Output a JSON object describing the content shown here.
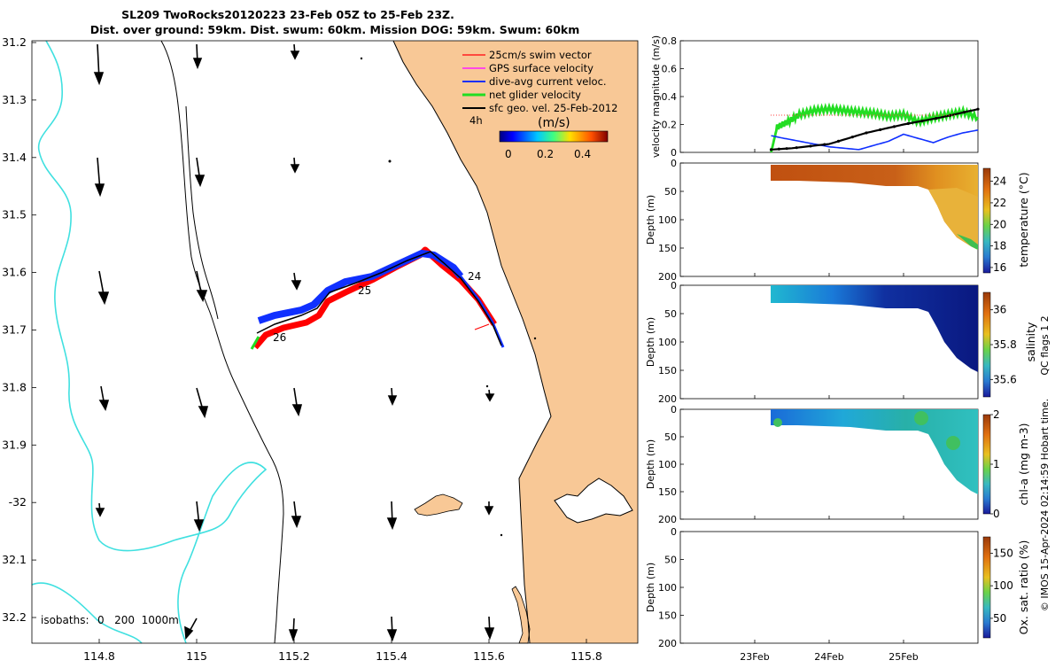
{
  "title": {
    "line1": "SL209 TwoRocks20120223 23-Feb 05Z to 25-Feb 23Z.",
    "line2": "Dist. over ground: 59km. Dist. swum: 60km. Mission DOG: 59km. Swum: 60km"
  },
  "colors": {
    "land": "#f8c896",
    "isobath_shallow": "#40e0e0",
    "track_red": "#ff0000",
    "current_blue": "#1030ff",
    "net_green": "#22dd22",
    "geo_black": "#000000"
  },
  "map": {
    "lat_ticks": [
      "31.2",
      "31.3",
      "31.4",
      "31.5",
      "31.6",
      "31.7",
      "31.8",
      "31.9",
      "-32",
      "32.1",
      "32.2"
    ],
    "lon_ticks": [
      "114.8",
      "115",
      "115.2",
      "115.4",
      "115.6",
      "115.8"
    ],
    "day_labels": [
      "24",
      "25",
      "26"
    ],
    "isobaths": {
      "label": "isobaths:",
      "values": "0   200  1000m"
    },
    "legend": {
      "items": [
        {
          "label": "25cm/s swim vector",
          "color": "#ff2020"
        },
        {
          "label": "GPS surface velocity",
          "color": "#ff20ff"
        },
        {
          "label": "dive-avg current veloc.",
          "color": "#1030ff"
        },
        {
          "label": "net glider velocity",
          "color": "#22dd22"
        },
        {
          "label": "sfc geo. vel. 25-Feb-2012",
          "color": "#000000"
        }
      ],
      "time_label": "4h",
      "colorbar_unit": "(m/s)",
      "colorbar_ticks": [
        "0",
        "0.2",
        "0.4"
      ]
    }
  },
  "chart_data": [
    {
      "type": "line",
      "title": "",
      "ylabel": "velocity magnitude (m/s)",
      "ylim": [
        0,
        0.8
      ],
      "yticks": [
        "0",
        "0.2",
        "0.4",
        "0.6",
        "0.8"
      ],
      "x": [
        "23Feb",
        "24Feb",
        "25Feb"
      ],
      "xlim_days": [
        22.0,
        26.0
      ],
      "series": [
        {
          "name": "net glider velocity",
          "color": "#22dd22",
          "x": [
            23.22,
            23.3,
            23.45,
            23.6,
            23.8,
            24.0,
            24.2,
            24.4,
            24.6,
            24.8,
            25.0,
            25.2,
            25.4,
            25.6,
            25.8,
            26.0
          ],
          "y": [
            0.0,
            0.18,
            0.22,
            0.27,
            0.3,
            0.31,
            0.3,
            0.29,
            0.28,
            0.26,
            0.27,
            0.22,
            0.25,
            0.27,
            0.29,
            0.25
          ]
        },
        {
          "name": "dive-avg current",
          "color": "#1030ff",
          "x": [
            23.22,
            23.4,
            23.6,
            23.8,
            24.0,
            24.2,
            24.4,
            24.6,
            24.8,
            25.0,
            25.2,
            25.4,
            25.6,
            25.8,
            26.0
          ],
          "y": [
            0.12,
            0.1,
            0.08,
            0.06,
            0.04,
            0.03,
            0.02,
            0.05,
            0.08,
            0.13,
            0.1,
            0.07,
            0.11,
            0.14,
            0.16
          ]
        },
        {
          "name": "sfc geo. vel.",
          "color": "#000000",
          "x": [
            23.22,
            23.5,
            24.0,
            24.5,
            25.0,
            25.5,
            26.0
          ],
          "y": [
            0.02,
            0.03,
            0.06,
            0.14,
            0.2,
            0.25,
            0.31
          ]
        }
      ]
    },
    {
      "type": "heatmap",
      "ylabel": "Depth (m)",
      "clabel": "temperature (°C)",
      "ylim": [
        0,
        200
      ],
      "yticks": [
        "0",
        "50",
        "100",
        "150",
        "200"
      ],
      "cticks": [
        "16",
        "18",
        "20",
        "22",
        "24"
      ],
      "crange": [
        15.5,
        25.2
      ]
    },
    {
      "type": "heatmap",
      "ylabel": "Depth (m)",
      "clabel": "salinity",
      "ylim": [
        0,
        200
      ],
      "yticks": [
        "0",
        "50",
        "100",
        "150",
        "200"
      ],
      "cticks": [
        "35.6",
        "35.8",
        "36"
      ],
      "crange": [
        35.5,
        36.1
      ]
    },
    {
      "type": "heatmap",
      "ylabel": "Depth (m)",
      "clabel": "chl-a (mg m-3)",
      "ylim": [
        0,
        200
      ],
      "yticks": [
        "0",
        "50",
        "100",
        "150",
        "200"
      ],
      "cticks": [
        "0",
        "1",
        "2"
      ],
      "crange": [
        0,
        2
      ]
    },
    {
      "type": "heatmap",
      "ylabel": "Depth (m)",
      "clabel": "Ox. sat. ratio (%)",
      "ylim": [
        0,
        200
      ],
      "yticks": [
        "0",
        "50",
        "100",
        "150",
        "200"
      ],
      "cticks": [
        "50",
        "100",
        "150"
      ],
      "crange": [
        20,
        175
      ]
    }
  ],
  "xaxis_dates": [
    "23Feb",
    "24Feb",
    "25Feb"
  ],
  "qc_text": "QC flags 1  2",
  "credit_text": "© IMOS 15-Apr-2024 02:14:59 Hobart time."
}
